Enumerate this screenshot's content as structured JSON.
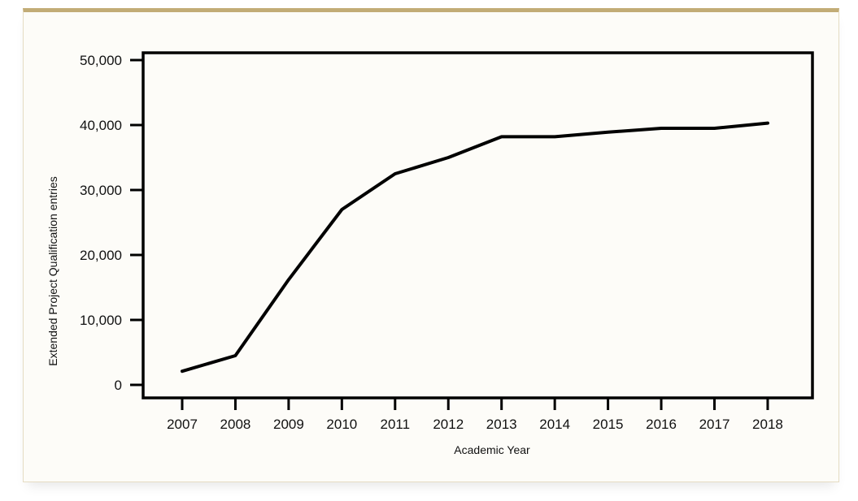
{
  "colors": {
    "accent_border": "#c2ac76",
    "card_background": "#fdfcf8",
    "line": "#000000"
  },
  "chart_data": {
    "type": "line",
    "title": "",
    "xlabel": "Academic Year",
    "ylabel": "Extended Project Qualification entries",
    "x": [
      "2007",
      "2008",
      "2009",
      "2010",
      "2011",
      "2012",
      "2013",
      "2014",
      "2015",
      "2016",
      "2017",
      "2018"
    ],
    "series": [
      {
        "values": [
          2100,
          4500,
          16200,
          27000,
          32500,
          35000,
          38200,
          38200,
          38900,
          39500,
          39500,
          40300
        ]
      }
    ],
    "ylim": [
      0,
      51000
    ],
    "yticks": [
      "0",
      "10,000",
      "20,000",
      "30,000",
      "40,000",
      "50,000"
    ],
    "ytick_values": [
      0,
      10000,
      20000,
      30000,
      40000,
      50000
    ],
    "grid": false,
    "legend": "none"
  }
}
